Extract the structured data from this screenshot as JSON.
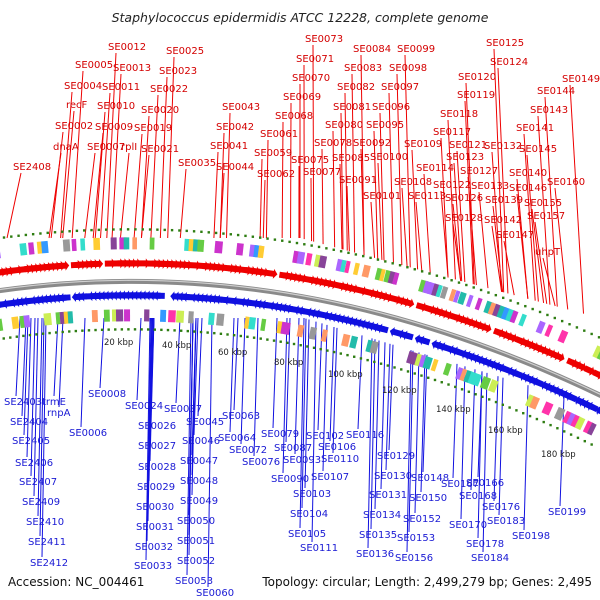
{
  "title": "Staphylococcus epidermidis ATCC 12228, complete genome",
  "accession": "Accession: NC_004461",
  "summary": "Topology: circular; Length: 2,499,279 bp; Genes: 2,495",
  "colors": {
    "forward": "#ee0000",
    "reverse": "#1010e0",
    "backbone": "#888888",
    "tick": "#2e7d12"
  },
  "scale_labels": [
    "20 kbp",
    "40 kbp",
    "60 kbp",
    "80 kbp",
    "100 kbp",
    "120 kbp",
    "140 kbp",
    "160 kbp",
    "180 kbp"
  ],
  "top_labels": [
    "SE0012",
    "SE0025",
    "SE0005",
    "SE0013",
    "SE0023",
    "SE0004",
    "SE0011",
    "SE0022",
    "recF",
    "SE0010",
    "SE0020",
    "SE0002",
    "SE0009",
    "SE0019",
    "dnaA",
    "SE0007",
    "rplI",
    "SE0021",
    "SE0043",
    "SE0042",
    "SE0041",
    "SE0035",
    "SE0044",
    "SE0073",
    "SE0084",
    "SE0099",
    "SE0071",
    "SE0083",
    "SE0098",
    "SE0070",
    "SE0082",
    "SE0097",
    "SE0069",
    "SE0081",
    "SE0096",
    "SE0068",
    "SE0080",
    "SE0095",
    "SE0061",
    "SE0078",
    "SE0092",
    "SE0059",
    "SE0075",
    "SE0085",
    "SE0100",
    "SE0062",
    "SE0077",
    "SE0091",
    "SE0101",
    "SE0125",
    "SE0124",
    "SE0149",
    "SE0120",
    "SE0144",
    "SE0119",
    "SE0143",
    "SE0118",
    "SE0141",
    "SE0117",
    "SE0109",
    "SE0121",
    "SE0132",
    "SE0145",
    "SE0123",
    "SE0114",
    "SE0127",
    "SE0140",
    "SE0108",
    "SE0122",
    "SE0133",
    "SE0146",
    "SE0160",
    "SE0113",
    "SE0126",
    "SE0139",
    "SE0155",
    "SE0128",
    "SE0142",
    "SE0157",
    "SE0147",
    "uhpT",
    "SE2408"
  ],
  "bottom_labels": [
    "SE0008",
    "SE0024",
    "SE2403",
    "trmE",
    "rnpA",
    "SE2404",
    "SE0006",
    "SE2405",
    "SE2406",
    "SE2407",
    "SE2409",
    "SE2410",
    "SE2411",
    "SE2412",
    "SE0037",
    "SE0026",
    "SE0027",
    "SE0028",
    "SE0029",
    "SE0030",
    "SE0031",
    "SE0032",
    "SE0033",
    "SE0045",
    "SE0046",
    "SE0047",
    "SE0048",
    "SE0049",
    "SE0050",
    "SE0051",
    "SE0052",
    "SE0053",
    "SE0060",
    "SE0063",
    "SE0064",
    "SE0072",
    "SE0076",
    "SE0079",
    "SE0087",
    "SE0093",
    "SE0090",
    "SE0102",
    "SE0106",
    "SE0110",
    "SE0107",
    "SE0103",
    "SE0104",
    "SE0105",
    "SE0111",
    "SE0116",
    "SE0129",
    "SE0130",
    "SE0131",
    "SE0134",
    "SE0135",
    "SE0136",
    "SE0148",
    "SE0150",
    "SE0152",
    "SE0153",
    "SE0156",
    "SE0166",
    "SE0167",
    "SE0168",
    "SE0170",
    "SE0176",
    "SE0178",
    "SE0183",
    "SE0184",
    "SE0198",
    "SE0199"
  ]
}
